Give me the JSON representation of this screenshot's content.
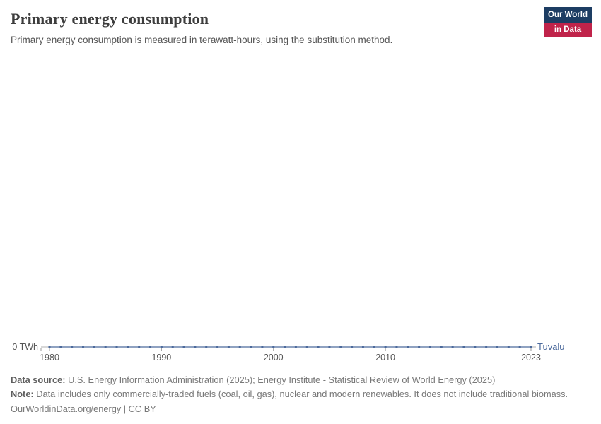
{
  "header": {
    "title": "Primary energy consumption",
    "subtitle": "Primary energy consumption is measured in terawatt-hours, using the substitution method."
  },
  "logo": {
    "line1": "Our World",
    "line2": "in Data",
    "bg_color": "#1d3d63",
    "accent_color": "#c0234a"
  },
  "chart_data": {
    "type": "line",
    "title": "Primary energy consumption",
    "unit": "TWh",
    "entity": "Tuvalu",
    "color": "#4c6a9c",
    "axis_color": "#999999",
    "tick_label_color": "#555555",
    "x": [
      1980,
      1981,
      1982,
      1983,
      1984,
      1985,
      1986,
      1987,
      1988,
      1989,
      1990,
      1991,
      1992,
      1993,
      1994,
      1995,
      1996,
      1997,
      1998,
      1999,
      2000,
      2001,
      2002,
      2003,
      2004,
      2005,
      2006,
      2007,
      2008,
      2009,
      2010,
      2011,
      2012,
      2013,
      2014,
      2015,
      2016,
      2017,
      2018,
      2019,
      2020,
      2021,
      2022,
      2023
    ],
    "values": [
      0,
      0,
      0,
      0,
      0,
      0,
      0,
      0,
      0,
      0,
      0,
      0,
      0,
      0,
      0,
      0,
      0,
      0,
      0,
      0,
      0,
      0,
      0,
      0,
      0,
      0,
      0,
      0,
      0,
      0,
      0,
      0,
      0,
      0,
      0,
      0,
      0,
      0,
      0,
      0,
      0,
      0,
      0,
      0
    ],
    "x_ticks": [
      1980,
      1990,
      2000,
      2010,
      2023
    ],
    "y_ticks": [
      {
        "value": 0,
        "label": "0 TWh"
      }
    ],
    "xlim": [
      1980,
      2023
    ],
    "ylim": [
      0,
      1
    ],
    "grid": false,
    "legend_position": "end-of-line"
  },
  "footer": {
    "data_source_label": "Data source:",
    "data_source": "U.S. Energy Information Administration (2025); Energy Institute - Statistical Review of World Energy (2025)",
    "note_label": "Note:",
    "note": "Data includes only commercially-traded fuels (coal, oil, gas), nuclear and modern renewables. It does not include traditional biomass.",
    "license": "OurWorldinData.org/energy | CC BY"
  }
}
